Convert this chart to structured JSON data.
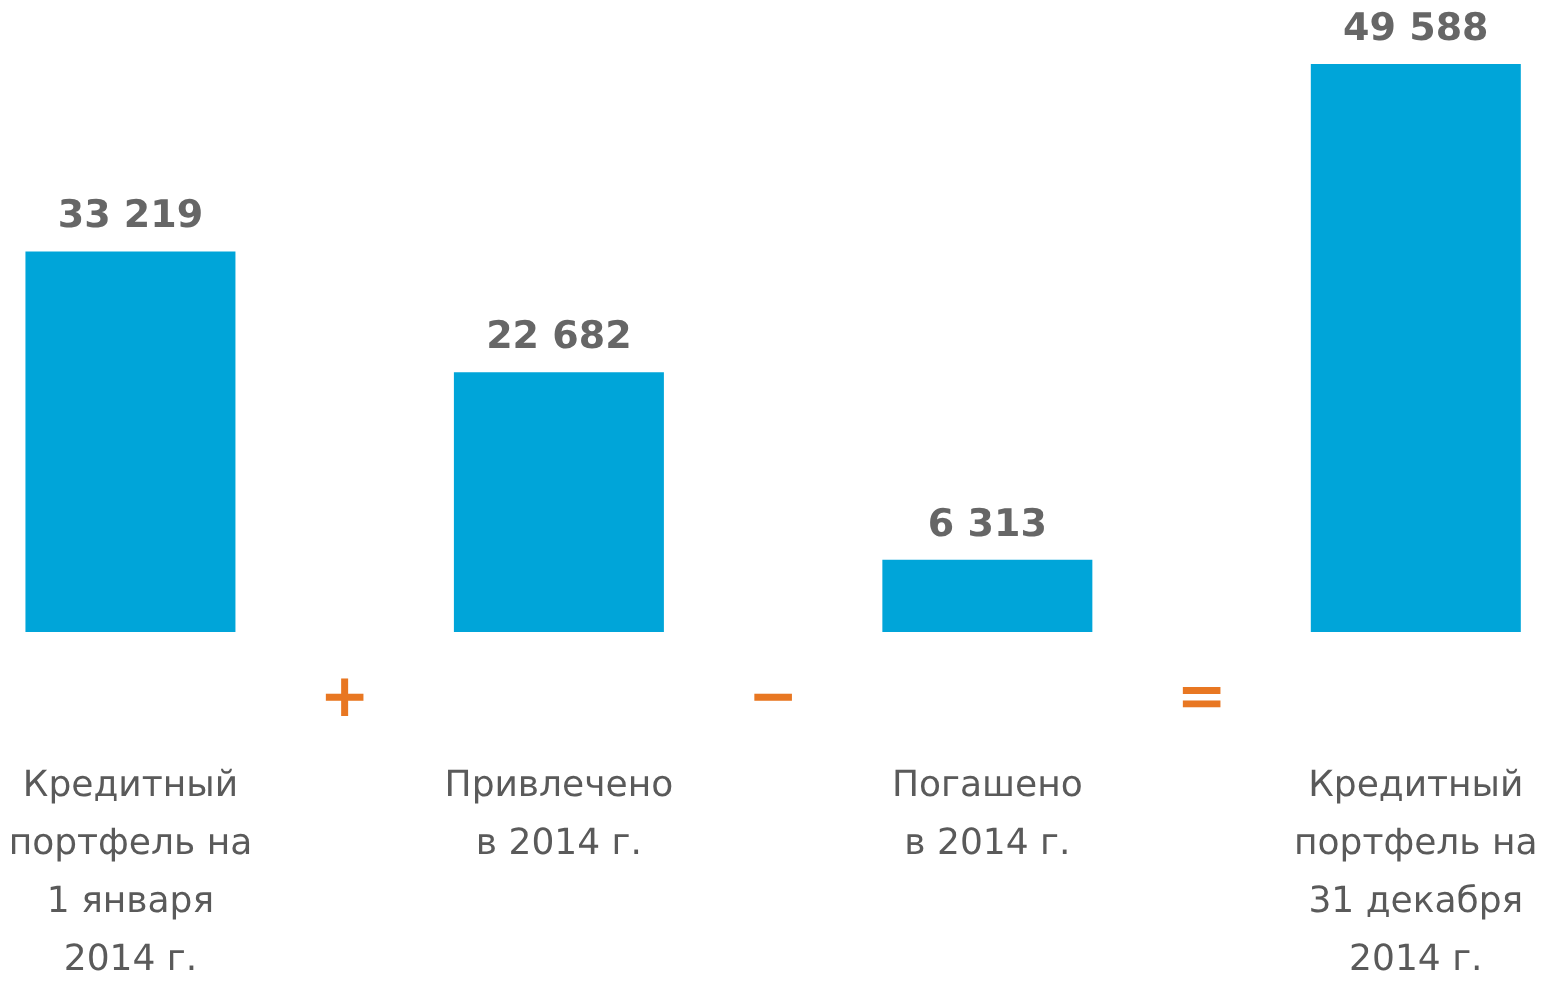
{
  "chart_data": {
    "type": "bar",
    "categories": [
      "Кредитный\nпортфель на\n1 января\n2014 г.",
      "Привлечено\nв 2014 г.",
      "Погашено\nв 2014 г.",
      "Кредитный\nпортфель на\n31 декабря\n2014 г."
    ],
    "values": [
      33219,
      22682,
      6313,
      49588
    ],
    "value_labels": [
      "33 219",
      "22 682",
      "6 313",
      "49 588"
    ],
    "color": "#00a5d9",
    "annotations": [
      "+",
      "−",
      "="
    ],
    "tick_labels": false
  }
}
